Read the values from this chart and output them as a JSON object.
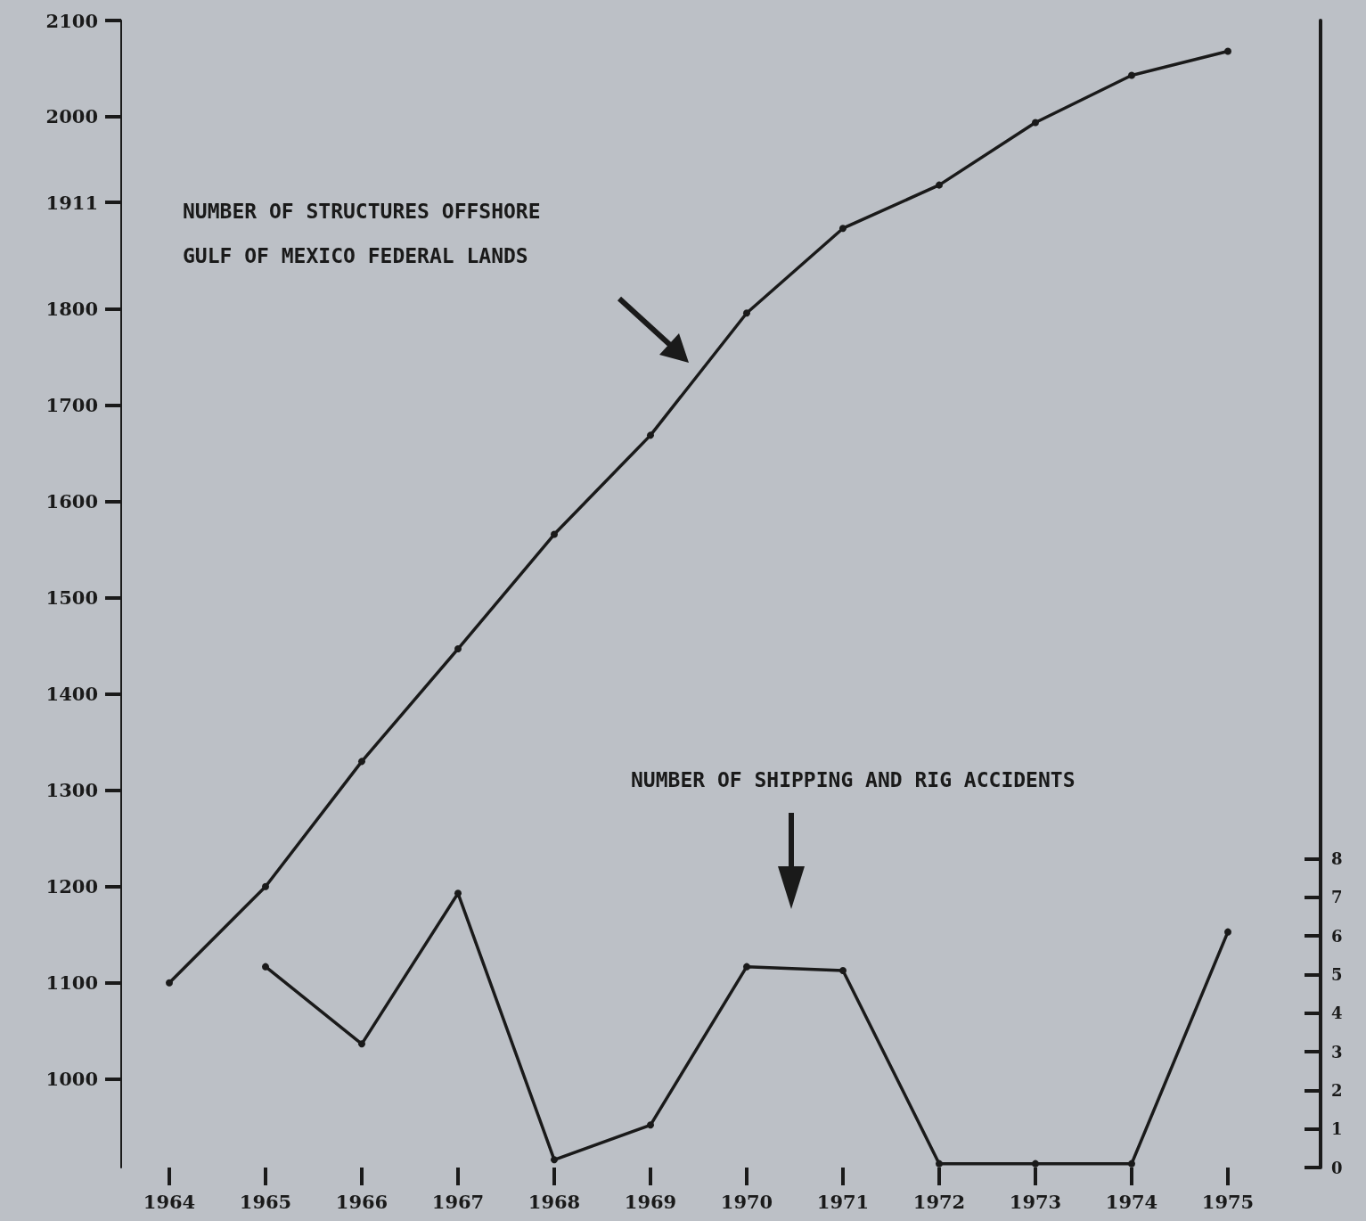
{
  "chart_data": {
    "type": "line",
    "categories": [
      "1964",
      "1965",
      "1966",
      "1967",
      "1968",
      "1969",
      "1970",
      "1971",
      "1972",
      "1973",
      "1974",
      "1975"
    ],
    "series": [
      {
        "color": "#1a1a1a",
        "values": [
          1100,
          1200,
          1330,
          1447,
          1566,
          1669,
          1796,
          1884,
          1929,
          1994,
          2043,
          2068
        ]
      },
      {
        "color": "#1a1a1a",
        "axis": "y2",
        "values": [
          null,
          5.2,
          3.2,
          7.1,
          0.2,
          1.1,
          5.2,
          5.1,
          0.1,
          0.1,
          0.1,
          6.1
        ]
      }
    ],
    "ylim": [
      908,
      2100
    ],
    "yticks": [
      1000,
      1100,
      1200,
      1300,
      1400,
      1500,
      1600,
      1700,
      1800,
      1911,
      2000,
      2100
    ],
    "y2lim": [
      0,
      29.7
    ],
    "y2ticks": [
      0,
      1,
      2,
      3,
      4,
      5,
      6,
      7,
      8
    ],
    "annotations": [
      "NUMBER OF STRUCTURES OFFSHORE GULF OF MEXICO FEDERAL LANDS",
      "NUMBER OF SHIPPING AND RIG ACCIDENTS"
    ],
    "grid": false,
    "marker": "circle",
    "line_style": "solid"
  }
}
